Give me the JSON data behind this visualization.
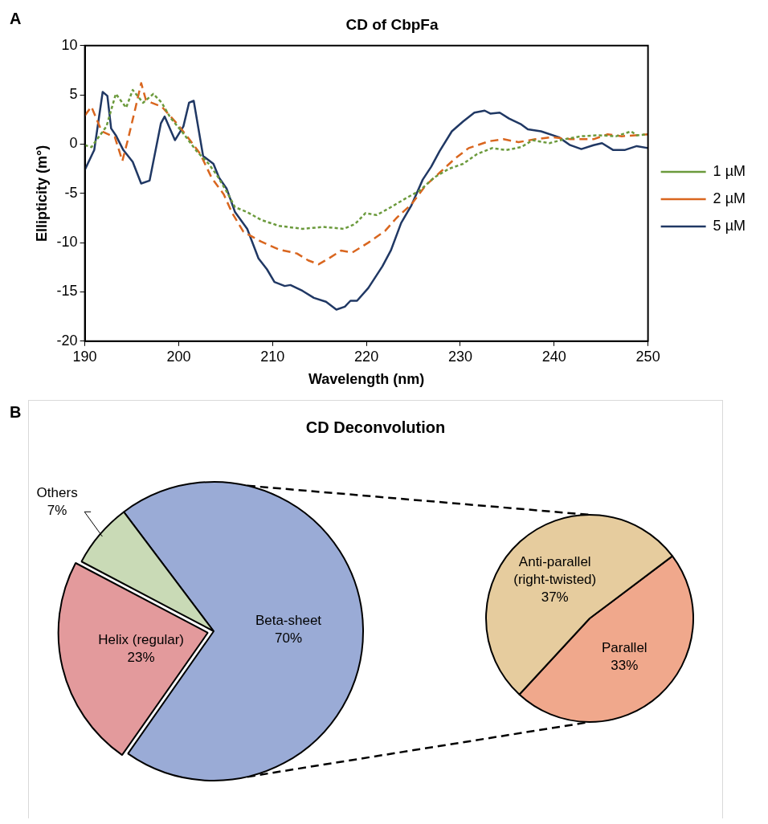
{
  "chart_data": [
    {
      "type": "line",
      "title": "CD of CbpFa",
      "xlabel": "Wavelength (nm)",
      "ylabel": "Ellipticity (m°)",
      "xlim": [
        190,
        250
      ],
      "xticks": [
        190,
        200,
        210,
        220,
        230,
        240,
        250
      ],
      "ylim": [
        -20,
        10
      ],
      "yticks": [
        -20,
        -15,
        -10,
        -5,
        0,
        5,
        10
      ],
      "legend": "right",
      "marker": "none",
      "annotations": [
        "A"
      ],
      "series": [
        {
          "name": "1 µM",
          "color": "#6b9a3c",
          "line_style": "dotted",
          "x": [
            190,
            190.7,
            192.3,
            193.3,
            194.4,
            195.1,
            196.2,
            197.3,
            198.2,
            199.1,
            200.4,
            201.9,
            203.2,
            204.1,
            205.1,
            206,
            207.3,
            208.8,
            210.7,
            213.2,
            215.4,
            217.6,
            218.8,
            219.9,
            221.1,
            222.6,
            224.2,
            225.7,
            227.2,
            228.8,
            230.3,
            231.8,
            233.4,
            234.9,
            236.5,
            237.7,
            239.5,
            241.1,
            242.9,
            244.8,
            246.6,
            248.2,
            248.8,
            250
          ],
          "values": [
            -0.1,
            -0.3,
            1.8,
            5.1,
            3.7,
            5.5,
            4.2,
            5.1,
            4.2,
            2.7,
            1.2,
            -0.7,
            -2,
            -3.2,
            -4.8,
            -6.4,
            -6.9,
            -7.7,
            -8.3,
            -8.6,
            -8.4,
            -8.6,
            -8.1,
            -7,
            -7.2,
            -6.4,
            -5.5,
            -4.7,
            -3.4,
            -2.5,
            -2,
            -1,
            -0.4,
            -0.6,
            -0.3,
            0.4,
            0.1,
            0.5,
            0.8,
            0.9,
            0.8,
            1.3,
            0.9,
            1
          ]
        },
        {
          "name": "2 µM",
          "color": "#d9661f",
          "line_style": "dashed",
          "x": [
            190,
            190.7,
            191.8,
            193.2,
            194,
            194.6,
            195.4,
            196,
            196.5,
            197.1,
            198.2,
            199.8,
            201.2,
            202.3,
            203.5,
            204.8,
            205.7,
            206.9,
            208.8,
            210.7,
            212.6,
            213.8,
            214.9,
            216,
            217.3,
            218.5,
            220.2,
            222,
            223.2,
            224.8,
            226.3,
            227.8,
            229.4,
            230.9,
            233.1,
            234.6,
            236.2,
            238,
            239.8,
            241.7,
            244.2,
            245.7,
            247.2,
            250
          ],
          "values": [
            2.9,
            3.8,
            1.3,
            0.7,
            -1.7,
            0.5,
            3.7,
            6.2,
            4.5,
            4.2,
            3.8,
            2.1,
            0.4,
            -1,
            -3.4,
            -5.1,
            -7,
            -8.9,
            -9.9,
            -10.7,
            -11.1,
            -11.8,
            -12.2,
            -11.6,
            -10.8,
            -11,
            -10,
            -8.8,
            -7.5,
            -6.1,
            -4.2,
            -2.9,
            -1.5,
            -0.4,
            0.3,
            0.5,
            0.2,
            0.5,
            0.7,
            0.5,
            0.5,
            1,
            0.8,
            1
          ]
        },
        {
          "name": "5 µM",
          "color": "#203864",
          "line_style": "solid",
          "x": [
            190,
            191,
            191.9,
            192.4,
            192.8,
            193.3,
            194.1,
            195.1,
            196,
            196.9,
            198.1,
            198.5,
            199.6,
            200.5,
            201.1,
            201.6,
            202.6,
            203.7,
            204.3,
            205.1,
            206,
            207.3,
            208.5,
            209.4,
            210.2,
            211.3,
            211.9,
            213.2,
            214.4,
            215.7,
            216.8,
            217.7,
            218.3,
            219,
            220.2,
            221.7,
            222.6,
            223.7,
            224.8,
            226,
            226.9,
            227.8,
            229.1,
            230.3,
            231.5,
            232.6,
            233.2,
            234.2,
            235.2,
            236.5,
            237.2,
            238.6,
            240.5,
            241.7,
            242.9,
            244.2,
            245.1,
            246.3,
            247.5,
            248.8,
            250
          ],
          "values": [
            -2.6,
            -0.6,
            5.3,
            4.9,
            1.6,
            0.9,
            -0.6,
            -1.8,
            -4,
            -3.7,
            2.1,
            2.8,
            0.4,
            1.8,
            4.2,
            4.4,
            -1.2,
            -2,
            -3.4,
            -4.5,
            -6.9,
            -8.6,
            -11.6,
            -12.7,
            -14,
            -14.4,
            -14.3,
            -14.9,
            -15.6,
            -16,
            -16.8,
            -16.5,
            -15.9,
            -15.9,
            -14.6,
            -12.4,
            -10.8,
            -8,
            -6.2,
            -3.6,
            -2.3,
            -0.7,
            1.3,
            2.3,
            3.2,
            3.4,
            3.1,
            3.2,
            2.6,
            2,
            1.5,
            1.3,
            0.7,
            -0.1,
            -0.5,
            -0.1,
            0.1,
            -0.6,
            -0.6,
            -0.2,
            -0.4
          ]
        }
      ]
    },
    {
      "type": "pie",
      "title": "CD Deconvolution",
      "annotations": [
        "B"
      ],
      "categories": [
        "Beta-sheet",
        "Helix (regular)",
        "Others"
      ],
      "values": [
        70,
        23,
        7
      ],
      "colors": [
        "#9aabd6",
        "#e39a9c",
        "#c9dab6"
      ],
      "value_labels": [
        "70%",
        "23%",
        "7%"
      ]
    },
    {
      "type": "pie",
      "categories": [
        "Parallel",
        "Anti-parallel (right-twisted)"
      ],
      "values": [
        33,
        37
      ],
      "colors": [
        "#f0a88c",
        "#e6cc9e"
      ],
      "value_labels": [
        "33%",
        "37%"
      ]
    }
  ]
}
